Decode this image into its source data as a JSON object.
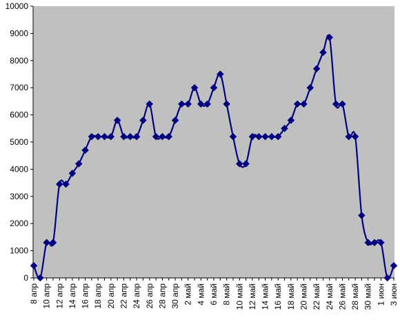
{
  "chart_data": {
    "type": "line",
    "title": "",
    "xlabel": "",
    "ylabel": "",
    "ylim": [
      0,
      10000
    ],
    "yticks": [
      0,
      1000,
      2000,
      3000,
      4000,
      5000,
      6000,
      7000,
      8000,
      9000,
      10000
    ],
    "grid": false,
    "legend": "none",
    "colors": {
      "plot_background": "#c0c0c0",
      "line": "#000080",
      "marker": "#000080"
    },
    "marker": "diamond",
    "x_tick_labels": [
      "8 апр",
      "10 апр",
      "12 апр",
      "14 апр",
      "16 апр",
      "18 апр",
      "20 апр",
      "22 апр",
      "24 апр",
      "26 апр",
      "28 апр",
      "30 апр",
      "2 май",
      "4 май",
      "6 май",
      "8 май",
      "10 май",
      "12 май",
      "14 май",
      "16 май",
      "18 май",
      "20 май",
      "22 май",
      "24 май",
      "26 май",
      "28 май",
      "30 май",
      "1 июн",
      "3 июн"
    ],
    "series": [
      {
        "values": [
          450,
          0,
          1300,
          1300,
          3450,
          3450,
          3850,
          4200,
          4700,
          5200,
          5200,
          5200,
          5200,
          5800,
          5200,
          5200,
          5200,
          5800,
          6400,
          5200,
          5200,
          5200,
          5800,
          6400,
          6400,
          7000,
          6400,
          6400,
          7000,
          7500,
          6400,
          5200,
          4200,
          4200,
          5200,
          5200,
          5200,
          5200,
          5200,
          5500,
          5800,
          6400,
          6400,
          7000,
          7700,
          8300,
          8850,
          6400,
          6400,
          5200,
          5200,
          2300,
          1300,
          1300,
          1300,
          0,
          450
        ]
      }
    ]
  }
}
